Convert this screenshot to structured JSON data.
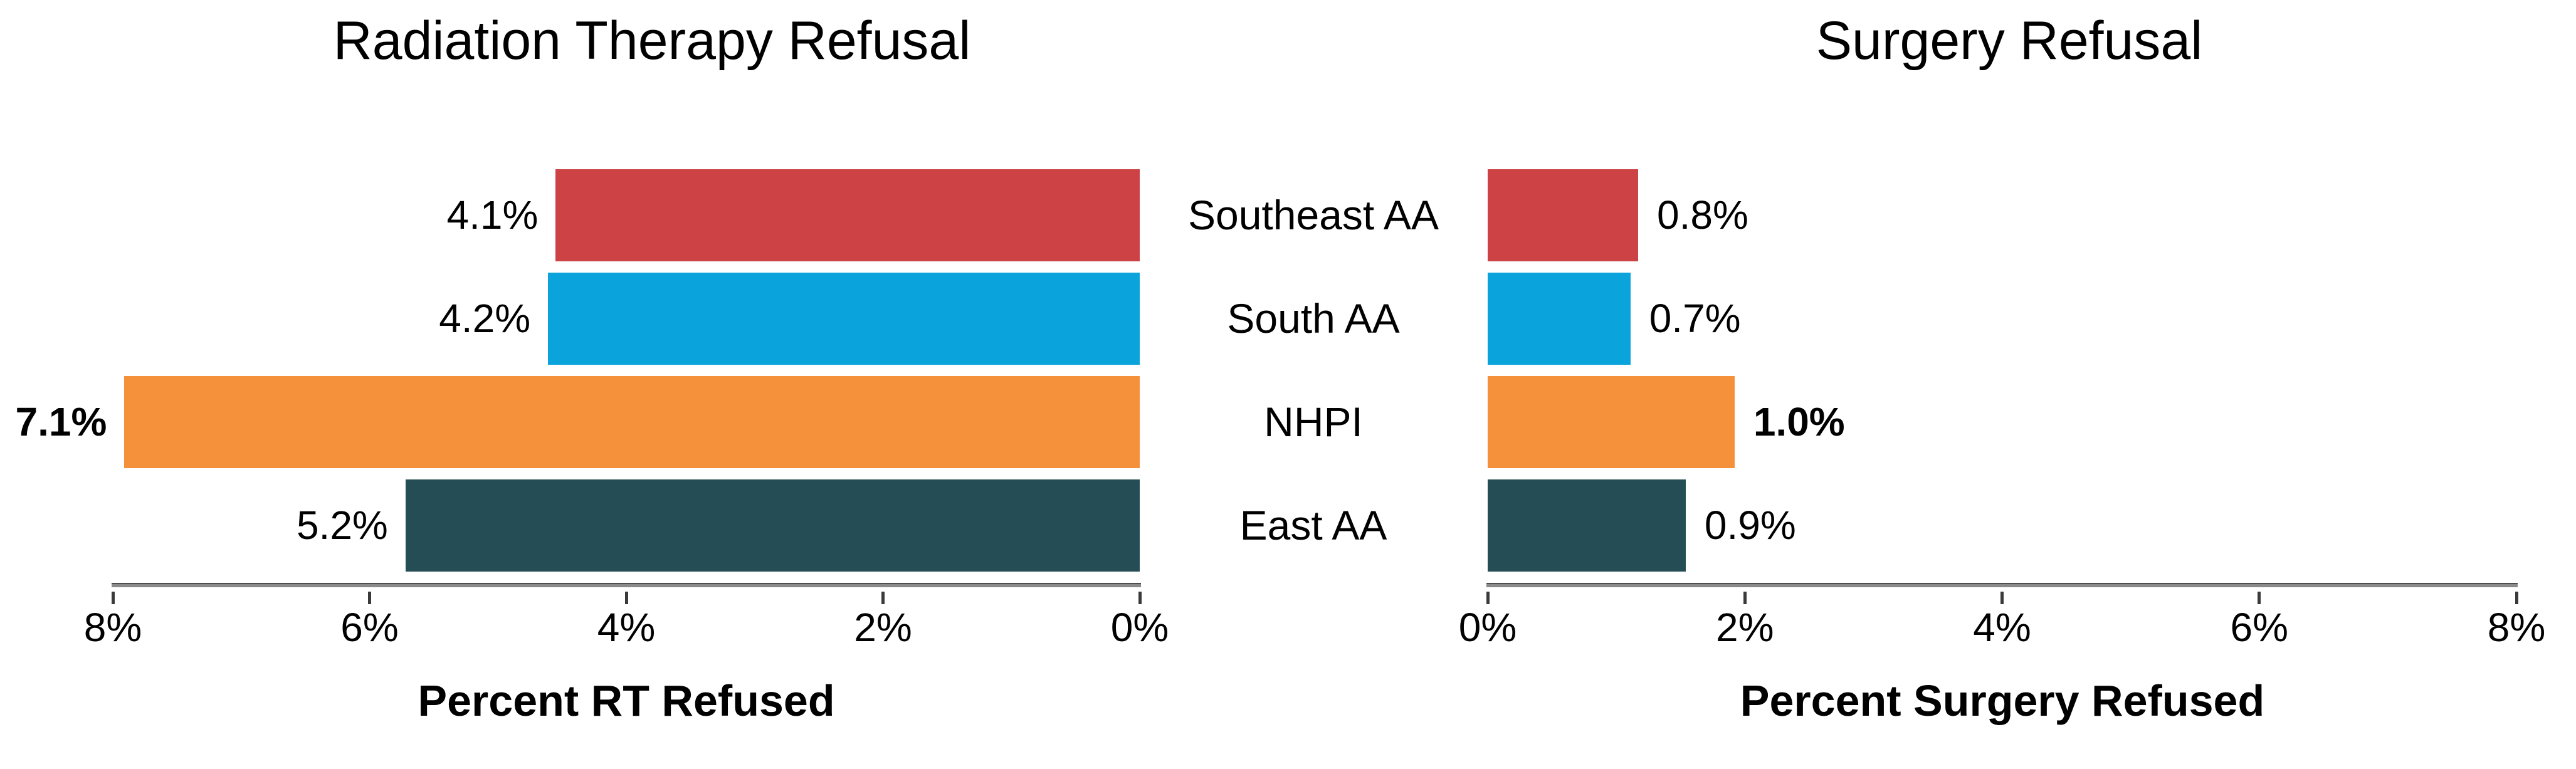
{
  "figure": {
    "background": "#ffffff",
    "categories": [
      "Southeast AA",
      "South AA",
      "NHPI",
      "East AA"
    ],
    "category_colors": [
      "#cd4345",
      "#0aa3dc",
      "#f5913b",
      "#254d56"
    ],
    "axis_line_color": "#8a8a8a",
    "text_color": "#000000"
  },
  "chart_data": [
    {
      "type": "bar",
      "orientation": "horizontal",
      "side": "left",
      "title": "Radiation Therapy Refusal",
      "xlabel": "Percent RT Refused",
      "categories": [
        "Southeast AA",
        "South AA",
        "NHPI",
        "East AA"
      ],
      "values": [
        4.1,
        4.2,
        7.1,
        5.2
      ],
      "value_labels": [
        "4.1%",
        "4.2%",
        "7.1%",
        "5.2%"
      ],
      "bold_value_index": 2,
      "axis_ticks": [
        "8%",
        "6%",
        "4%",
        "2%",
        "0%"
      ],
      "xlim": [
        8,
        0
      ],
      "axis_reversed": true,
      "grid": false,
      "legend": "none",
      "bar_display_percent": [
        4.55,
        4.61,
        7.91,
        5.72
      ]
    },
    {
      "type": "bar",
      "orientation": "horizontal",
      "side": "right",
      "title": "Surgery Refusal",
      "xlabel": "Percent Surgery Refused",
      "categories": [
        "Southeast AA",
        "South AA",
        "NHPI",
        "East AA"
      ],
      "values": [
        0.8,
        0.7,
        1.0,
        0.9
      ],
      "value_labels": [
        "0.8%",
        "0.7%",
        "1.0%",
        "0.9%"
      ],
      "bold_value_index": 2,
      "axis_ticks": [
        "0%",
        "2%",
        "4%",
        "6%",
        "8%"
      ],
      "xlim": [
        0,
        8
      ],
      "axis_reversed": false,
      "grid": false,
      "legend": "none",
      "bar_display_percent": [
        1.17,
        1.11,
        1.92,
        1.54
      ]
    }
  ]
}
